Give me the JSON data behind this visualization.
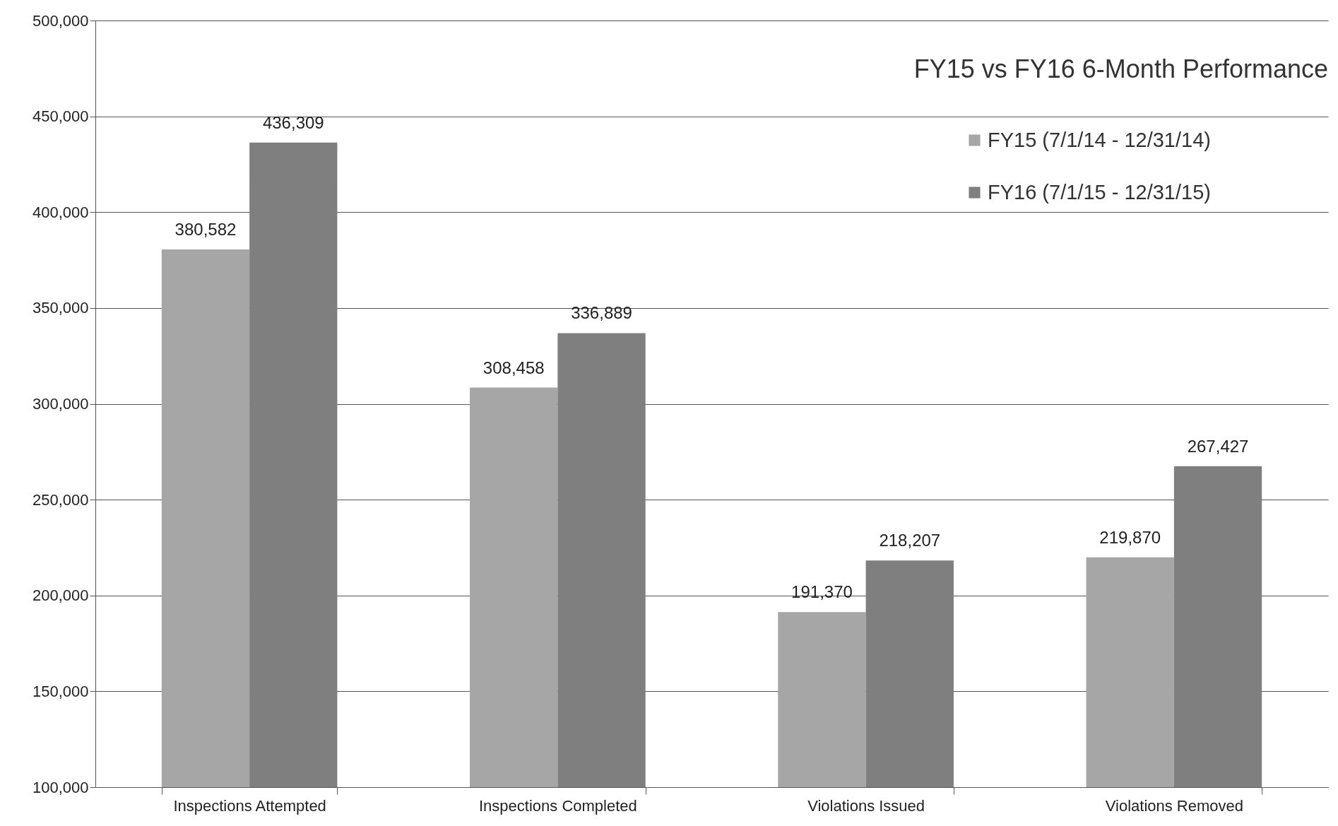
{
  "chart_data": {
    "type": "bar",
    "title": "FY15 vs FY16 6-Month Performance",
    "categories": [
      "Inspections Attempted",
      "Inspections Completed",
      "Violations Issued",
      "Violations Removed"
    ],
    "series": [
      {
        "name": "FY15 (7/1/14 - 12/31/14)",
        "color": "#a6a6a6",
        "values": [
          380582,
          308458,
          191370,
          219870
        ],
        "value_labels": [
          "380,582",
          "308,458",
          "191,370",
          "219,870"
        ]
      },
      {
        "name": "FY16 (7/1/15 - 12/31/15)",
        "color": "#7f7f7f",
        "values": [
          436309,
          336889,
          218207,
          267427
        ],
        "value_labels": [
          "436,309",
          "336,889",
          "218,207",
          "267,427"
        ]
      }
    ],
    "ylim": [
      100000,
      500000
    ],
    "yticks": [
      {
        "value": 100000,
        "label": "100,000"
      },
      {
        "value": 150000,
        "label": "150,000"
      },
      {
        "value": 200000,
        "label": "200,000"
      },
      {
        "value": 250000,
        "label": "250,000"
      },
      {
        "value": 300000,
        "label": "300,000"
      },
      {
        "value": 350000,
        "label": "350,000"
      },
      {
        "value": 400000,
        "label": "400,000"
      },
      {
        "value": 450000,
        "label": "450,000"
      },
      {
        "value": 500000,
        "label": "500,000"
      }
    ],
    "grid": "y",
    "legend": "top right"
  }
}
